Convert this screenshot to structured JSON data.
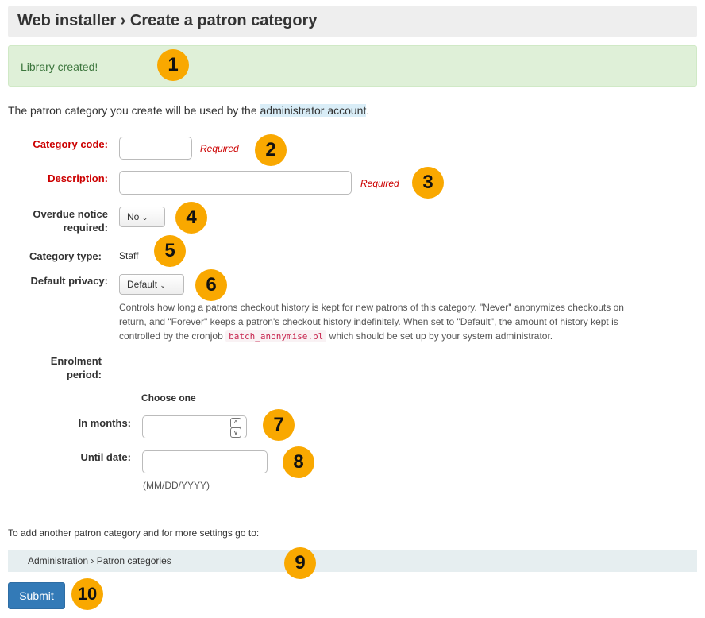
{
  "header": {
    "title": "Web installer › Create a patron category"
  },
  "alert": {
    "message": "Library created!"
  },
  "intro": {
    "before": "The patron category you create will be used by the ",
    "highlight": "administrator account",
    "after": "."
  },
  "form": {
    "category_code": {
      "label": "Category code:",
      "value": "",
      "required": "Required"
    },
    "description": {
      "label": "Description:",
      "value": "",
      "required": "Required"
    },
    "overdue": {
      "label_line1": "Overdue notice",
      "label_line2": "required:",
      "value": "No"
    },
    "category_type": {
      "label": "Category type:",
      "value": "Staff"
    },
    "privacy": {
      "label": "Default privacy:",
      "value": "Default",
      "hint_before": "Controls how long a patrons checkout history is kept for new patrons of this category. \"Never\" anonymizes checkouts on return, and \"Forever\" keeps a patron's checkout history indefinitely. When set to \"Default\", the amount of history kept is controlled by the cronjob ",
      "hint_code": "batch_anonymise.pl",
      "hint_after": " which should be set up by your system administrator."
    },
    "enrolment": {
      "label_line1": "Enrolment",
      "label_line2": "period:",
      "choose": "Choose one",
      "months_label": "In months:",
      "months_value": "",
      "date_label": "Until date:",
      "date_value": "",
      "date_hint": "(MM/DD/YYYY)"
    }
  },
  "footer": {
    "text": "To add another patron category and for more settings go to:",
    "breadcrumb": "Administration › Patron categories",
    "submit": "Submit"
  },
  "badges": [
    "1",
    "2",
    "3",
    "4",
    "5",
    "6",
    "7",
    "8",
    "9",
    "10"
  ],
  "colors": {
    "badge": "#f9a800",
    "submit": "#337ab7",
    "required": "#cc0000",
    "alert_bg": "#dff0d8"
  }
}
